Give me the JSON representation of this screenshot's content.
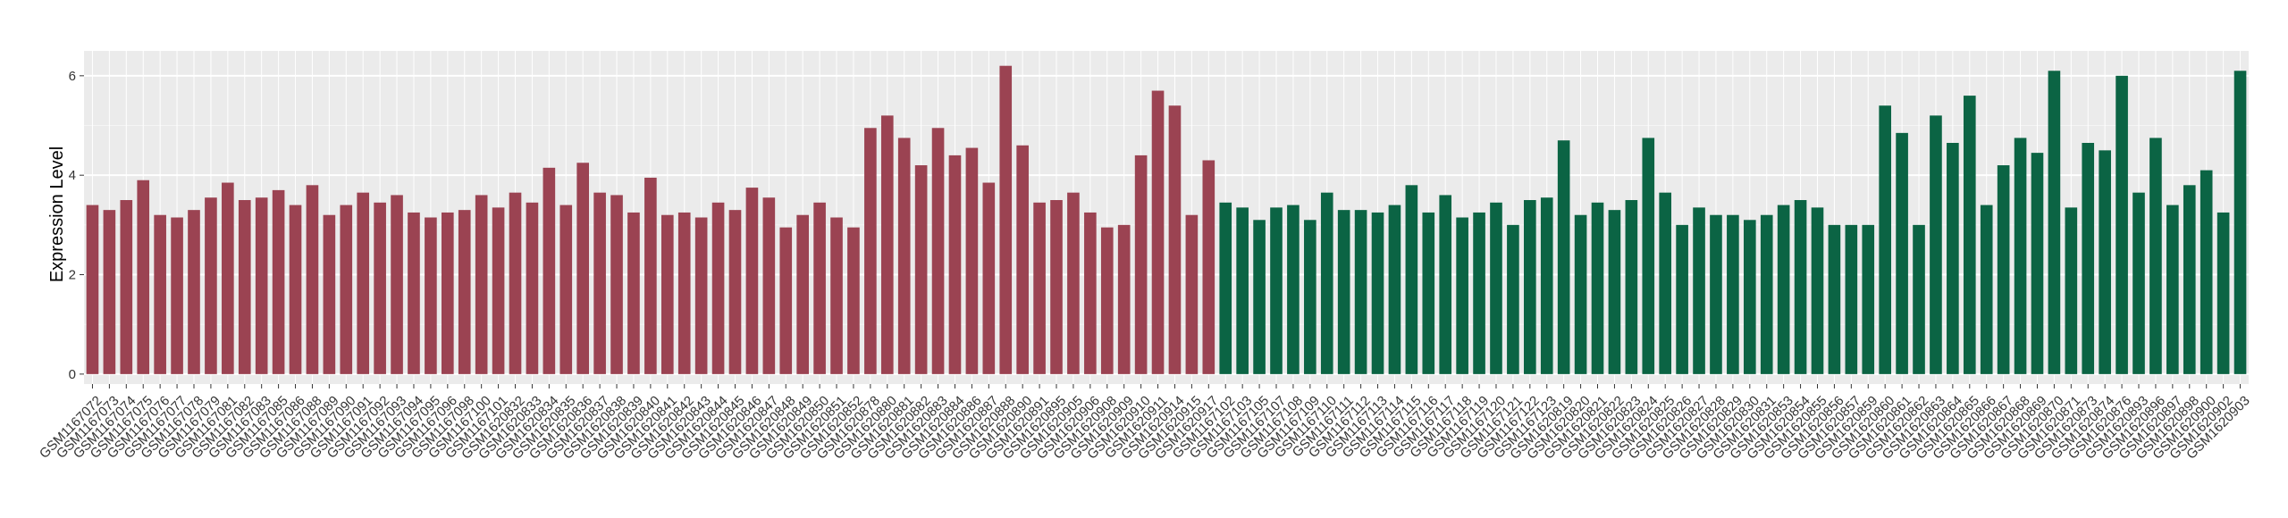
{
  "chart_data": {
    "type": "bar",
    "ylabel": "Expression Level",
    "ylim": [
      -0.2,
      6.5
    ],
    "yticks": [
      0,
      2,
      4,
      6
    ],
    "yminor": [
      1,
      3,
      5
    ],
    "grid": true,
    "background": "#ebebeb",
    "series": [
      {
        "color": "#9b4352",
        "categories": [
          "GSM1167072",
          "GSM1167073",
          "GSM1167074",
          "GSM1167075",
          "GSM1167076",
          "GSM1167077",
          "GSM1167078",
          "GSM1167079",
          "GSM1167081",
          "GSM1167082",
          "GSM1167083",
          "GSM1167085",
          "GSM1167086",
          "GSM1167088",
          "GSM1167089",
          "GSM1167090",
          "GSM1167091",
          "GSM1167092",
          "GSM1167093",
          "GSM1167094",
          "GSM1167095",
          "GSM1167096",
          "GSM1167098",
          "GSM1167100",
          "GSM1167101",
          "GSM1620832",
          "GSM1620833",
          "GSM1620834",
          "GSM1620835",
          "GSM1620836",
          "GSM1620837",
          "GSM1620838",
          "GSM1620839",
          "GSM1620840",
          "GSM1620841",
          "GSM1620842",
          "GSM1620843",
          "GSM1620844",
          "GSM1620845",
          "GSM1620846",
          "GSM1620847",
          "GSM1620848",
          "GSM1620849",
          "GSM1620850",
          "GSM1620851",
          "GSM1620852",
          "GSM1620878",
          "GSM1620880",
          "GSM1620881",
          "GSM1620882",
          "GSM1620883",
          "GSM1620884",
          "GSM1620886",
          "GSM1620887",
          "GSM1620888",
          "GSM1620890",
          "GSM1620891",
          "GSM1620895",
          "GSM1620905",
          "GSM1620906",
          "GSM1620908",
          "GSM1620909",
          "GSM1620910",
          "GSM1620911",
          "GSM1620914",
          "GSM1620915",
          "GSM1620917"
        ],
        "values": [
          3.4,
          3.3,
          3.5,
          3.9,
          3.2,
          3.15,
          3.3,
          3.55,
          3.85,
          3.5,
          3.55,
          3.7,
          3.4,
          3.8,
          3.2,
          3.4,
          3.65,
          3.45,
          3.6,
          3.25,
          3.15,
          3.25,
          3.3,
          3.6,
          3.35,
          3.65,
          3.45,
          4.15,
          3.4,
          4.25,
          3.65,
          3.6,
          3.25,
          3.95,
          3.2,
          3.25,
          3.15,
          3.45,
          3.3,
          3.75,
          3.55,
          2.95,
          3.2,
          3.45,
          3.15,
          2.95,
          4.95,
          5.2,
          4.75,
          4.2,
          4.95,
          4.4,
          4.55,
          3.85,
          6.2,
          4.6,
          3.45,
          3.5,
          3.65,
          3.25,
          2.95,
          3.0,
          4.4,
          5.7,
          5.4,
          3.2,
          4.3
        ]
      },
      {
        "color": "#0b6444",
        "categories": [
          "GSM1167102",
          "GSM1167103",
          "GSM1167105",
          "GSM1167107",
          "GSM1167108",
          "GSM1167109",
          "GSM1167110",
          "GSM1167111",
          "GSM1167112",
          "GSM1167113",
          "GSM1167114",
          "GSM1167115",
          "GSM1167116",
          "GSM1167117",
          "GSM1167118",
          "GSM1167119",
          "GSM1167120",
          "GSM1167121",
          "GSM1167122",
          "GSM1167123",
          "GSM1620819",
          "GSM1620820",
          "GSM1620821",
          "GSM1620822",
          "GSM1620823",
          "GSM1620824",
          "GSM1620825",
          "GSM1620826",
          "GSM1620827",
          "GSM1620828",
          "GSM1620829",
          "GSM1620830",
          "GSM1620831",
          "GSM1620853",
          "GSM1620854",
          "GSM1620855",
          "GSM1620856",
          "GSM1620857",
          "GSM1620859",
          "GSM1620860",
          "GSM1620861",
          "GSM1620862",
          "GSM1620863",
          "GSM1620864",
          "GSM1620865",
          "GSM1620866",
          "GSM1620867",
          "GSM1620868",
          "GSM1620869",
          "GSM1620870",
          "GSM1620871",
          "GSM1620873",
          "GSM1620874",
          "GSM1620876",
          "GSM1620893",
          "GSM1620896",
          "GSM1620897",
          "GSM1620898",
          "GSM1620900",
          "GSM1620902",
          "GSM1620903"
        ],
        "values": [
          3.45,
          3.35,
          3.1,
          3.35,
          3.4,
          3.1,
          3.65,
          3.3,
          3.3,
          3.25,
          3.4,
          3.8,
          3.25,
          3.6,
          3.15,
          3.25,
          3.45,
          3.0,
          3.5,
          3.55,
          4.7,
          3.2,
          3.45,
          3.3,
          3.5,
          4.75,
          3.65,
          3.0,
          3.35,
          3.2,
          3.2,
          3.1,
          3.2,
          3.4,
          3.5,
          3.35,
          3.0,
          3.0,
          3.0,
          5.4,
          4.85,
          3.0,
          5.2,
          4.65,
          5.6,
          3.4,
          4.2,
          4.75,
          4.45,
          6.1,
          3.35,
          4.65,
          4.5,
          6.0,
          3.65,
          4.75,
          3.4,
          3.8,
          4.1,
          3.25,
          6.1
        ]
      }
    ]
  }
}
